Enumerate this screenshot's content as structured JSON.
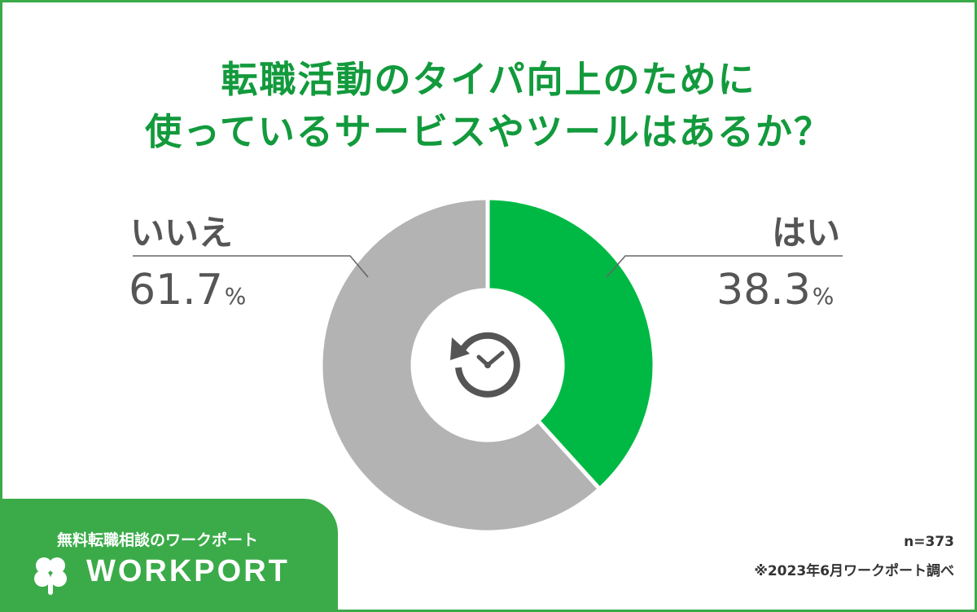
{
  "title": {
    "line1": "転職活動のタイパ向上のために",
    "line2": "使っているサービスやツールはあるか？"
  },
  "chart_data": {
    "type": "pie",
    "variant": "donut",
    "categories": [
      "はい",
      "いいえ"
    ],
    "values": [
      38.3,
      61.7
    ],
    "unit": "%",
    "colors": [
      "#00b944",
      "#b3b3b3"
    ],
    "center_icon": "clock-refresh-icon"
  },
  "labels": {
    "yes": {
      "name": "はい",
      "value": "38.3",
      "unit": "%"
    },
    "no": {
      "name": "いいえ",
      "value": "61.7",
      "unit": "%"
    }
  },
  "footer": {
    "sample": "n=373",
    "source": "※2023年6月ワークポート調べ"
  },
  "brand": {
    "tagline": "無料転職相談のワークポート",
    "logo": "WORKPORT",
    "logo_icon": "clover-icon",
    "color": "#3aab48"
  }
}
